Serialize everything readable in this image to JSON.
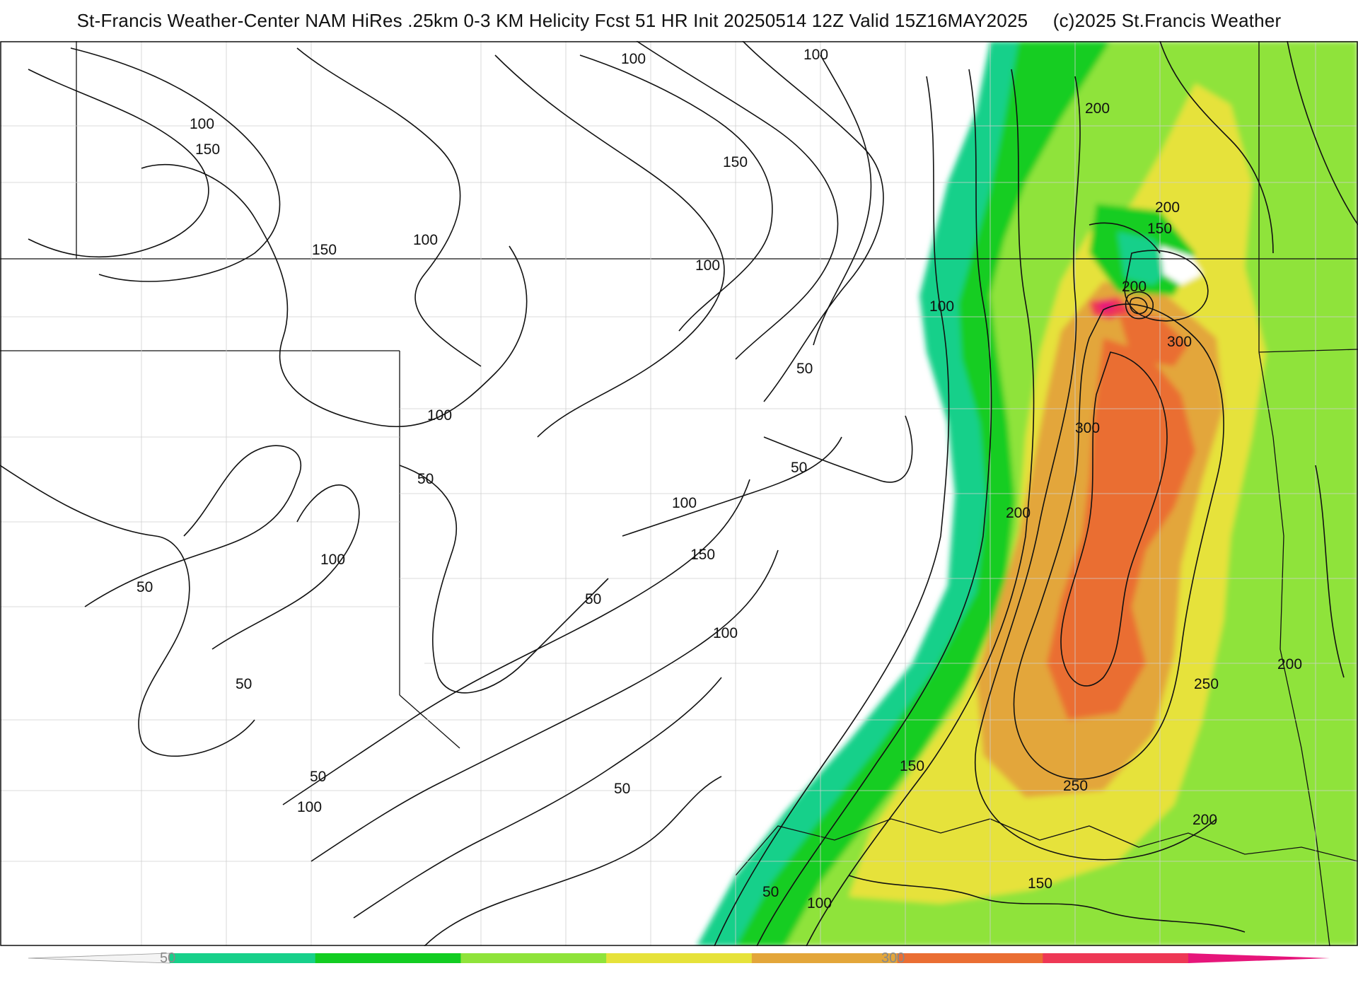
{
  "title": {
    "main": "St-Francis Weather-Center NAM HiRes .25km 0-3 KM Helicity Fcst 51 HR Init 20250514 12Z  Valid 15Z16MAY2025",
    "copyright": "(c)2025 St.Francis Weather"
  },
  "colorbar": {
    "tick_labels": [
      "50",
      "300"
    ],
    "colors": [
      "#f4f4f4",
      "#17d08a",
      "#12cd22",
      "#8fe33a",
      "#e6e23a",
      "#e3a63a",
      "#ea6e33",
      "#ee3855",
      "#e6157a"
    ]
  },
  "contour_labels": [
    {
      "text": "100"
    },
    {
      "text": "100"
    },
    {
      "text": "100"
    },
    {
      "text": "150"
    },
    {
      "text": "150"
    },
    {
      "text": "150"
    },
    {
      "text": "100"
    },
    {
      "text": "100"
    },
    {
      "text": "100"
    },
    {
      "text": "50"
    },
    {
      "text": "100"
    },
    {
      "text": "50"
    },
    {
      "text": "50"
    },
    {
      "text": "100"
    },
    {
      "text": "150"
    },
    {
      "text": "100"
    },
    {
      "text": "50"
    },
    {
      "text": "50"
    },
    {
      "text": "50"
    },
    {
      "text": "100"
    },
    {
      "text": "50"
    },
    {
      "text": "100"
    },
    {
      "text": "50"
    },
    {
      "text": "200"
    },
    {
      "text": "200"
    },
    {
      "text": "150"
    },
    {
      "text": "200"
    },
    {
      "text": "300"
    },
    {
      "text": "300"
    },
    {
      "text": "200"
    },
    {
      "text": "200"
    },
    {
      "text": "250"
    },
    {
      "text": "150"
    },
    {
      "text": "250"
    },
    {
      "text": "200"
    },
    {
      "text": "150"
    },
    {
      "text": "100"
    },
    {
      "text": "50"
    }
  ]
}
